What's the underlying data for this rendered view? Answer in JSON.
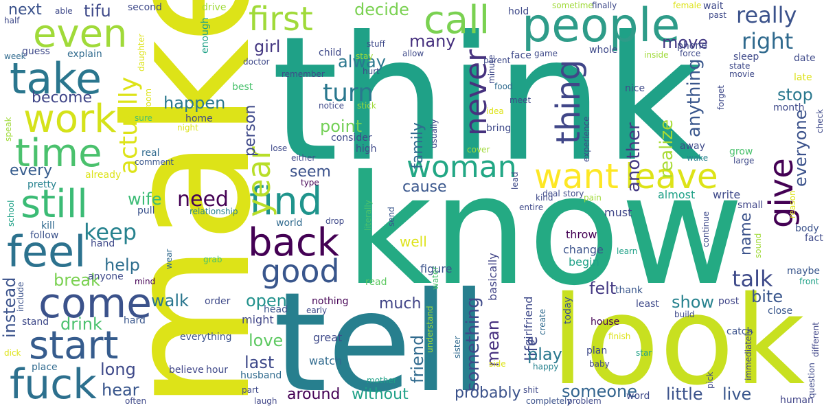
{
  "palette": {
    "yellow": "#dde318",
    "lime": "#a0da39",
    "green": "#4ac16d",
    "emerald": "#1fa187",
    "teal": "#277f8e",
    "blue": "#365c8d",
    "indigo": "#46327e",
    "purple": "#440154",
    "paleyellow": "#fde725"
  },
  "words": [
    "think",
    "know",
    "make",
    "tell",
    "look",
    "people",
    "even",
    "take",
    "work",
    "time",
    "still",
    "feel",
    "come",
    "start",
    "fuck",
    "call",
    "first",
    "woman",
    "find",
    "back",
    "good",
    "want",
    "leave",
    "give",
    "never",
    "thing",
    "year",
    "actually",
    "really",
    "right",
    "turn",
    "alway",
    "girl",
    "decide",
    "many",
    "move",
    "talk",
    "something",
    "friend",
    "mean",
    "life",
    "play",
    "little",
    "live",
    "someone",
    "probably",
    "around",
    "without",
    "keep",
    "help",
    "need",
    "happen",
    "become",
    "next",
    "tifu",
    "anything",
    "another",
    "realize",
    "everyone",
    "stop",
    "show",
    "felt",
    "bite",
    "name",
    "last",
    "love",
    "open",
    "break",
    "drink",
    "walk",
    "instead",
    "every",
    "long",
    "hear",
    "wife",
    "point",
    "family",
    "cause",
    "seem",
    "person",
    "much",
    "well",
    "figure",
    "basically",
    "girlfriend",
    "change",
    "begin",
    "throw",
    "must",
    "almost",
    "write",
    "small",
    "body",
    "fact",
    "maybe",
    "front",
    "question",
    "different",
    "human",
    "close",
    "catch",
    "build",
    "post",
    "least",
    "house",
    "thank",
    "learn",
    "plan",
    "baby",
    "star",
    "pick",
    "immediately",
    "happy",
    "finish",
    "today",
    "create",
    "side",
    "understand",
    "mother",
    "sister",
    "water",
    "read",
    "great",
    "watch",
    "nothing",
    "early",
    "head",
    "might",
    "husband",
    "part",
    "laugh",
    "completely",
    "problem",
    "word",
    "shit",
    "everything",
    "believe",
    "hour",
    "order",
    "hard",
    "stand",
    "include",
    "often",
    "place",
    "dick",
    "grab",
    "mind",
    "wear",
    "anyone",
    "hand",
    "follow",
    "kill",
    "school",
    "pull",
    "relationship",
    "world",
    "drop",
    "literally",
    "send",
    "type",
    "either",
    "real",
    "comment",
    "already",
    "pretty",
    "speak",
    "sure",
    "night",
    "room",
    "daughter",
    "enough",
    "drive",
    "second",
    "able",
    "half",
    "week",
    "guess",
    "explain",
    "child",
    "stuff",
    "stay",
    "allow",
    "parent",
    "face",
    "game",
    "minute",
    "idea",
    "food",
    "meet",
    "bring",
    "usually",
    "notice",
    "stick",
    "remember",
    "consider",
    "high",
    "lose",
    "cover",
    "lead",
    "kind",
    "entire",
    "deal",
    "story",
    "pain",
    "experience",
    "grow",
    "away",
    "wake",
    "large",
    "continue",
    "sound",
    "reason",
    "check",
    "forget",
    "date",
    "late",
    "month",
    "sleep",
    "state",
    "movie",
    "inside",
    "force",
    "phone",
    "wait",
    "past",
    "female",
    "sometime",
    "finally",
    "hold",
    "whole",
    "nice",
    "doctor",
    "best",
    "hurt",
    "home",
    "save",
    "join",
    "turn"
  ]
}
